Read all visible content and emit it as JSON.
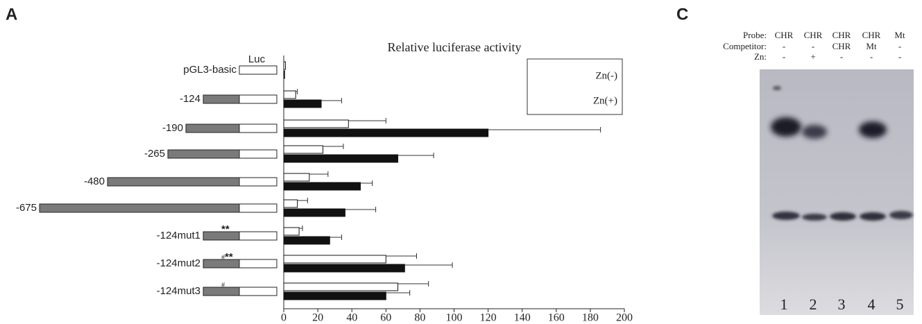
{
  "panels": {
    "a": "A",
    "c": "C"
  },
  "construct_diagram": {
    "luc_label": "Luc",
    "marks": [
      {
        "row": 6,
        "text": "**"
      },
      {
        "row": 7,
        "text": "#"
      },
      {
        "row": 7,
        "text": "**"
      },
      {
        "row": 8,
        "text": "#"
      }
    ]
  },
  "chart_data": {
    "type": "hbar",
    "title": "Relative luciferase activity",
    "categories": [
      "pGL3-basic",
      "-124",
      "-190",
      "-265",
      "-480",
      "-675",
      "-124mut1",
      "-124mut2",
      "-124mut3"
    ],
    "series": [
      {
        "name": "Zn(-)",
        "color": "#ffffff",
        "values": [
          1,
          7,
          38,
          23,
          15,
          8,
          9,
          60,
          67
        ],
        "errors": [
          0,
          1,
          22,
          12,
          11,
          6,
          2,
          18,
          18
        ]
      },
      {
        "name": "Zn(+)",
        "color": "#111111",
        "values": [
          0.5,
          22,
          120,
          67,
          45,
          36,
          27,
          71,
          60
        ],
        "errors": [
          0,
          12,
          66,
          21,
          7,
          18,
          7,
          28,
          14
        ]
      }
    ],
    "xlim": [
      0,
      200
    ],
    "xticks": [
      0,
      20,
      40,
      60,
      80,
      100,
      120,
      140,
      160,
      180,
      200
    ]
  },
  "gel": {
    "row_labels": [
      "Probe:",
      "Competitor:",
      "Zn:"
    ],
    "lanes": [
      {
        "probe": "CHR",
        "competitor": "-",
        "zn": "-",
        "number": "1"
      },
      {
        "probe": "CHR",
        "competitor": "-",
        "zn": "+",
        "number": "2"
      },
      {
        "probe": "CHR",
        "competitor": "CHR",
        "zn": "-",
        "number": "3"
      },
      {
        "probe": "CHR",
        "competitor": "Mt",
        "zn": "-",
        "number": "4"
      },
      {
        "probe": "Mt",
        "competitor": "-",
        "zn": "-",
        "number": "5"
      }
    ]
  }
}
